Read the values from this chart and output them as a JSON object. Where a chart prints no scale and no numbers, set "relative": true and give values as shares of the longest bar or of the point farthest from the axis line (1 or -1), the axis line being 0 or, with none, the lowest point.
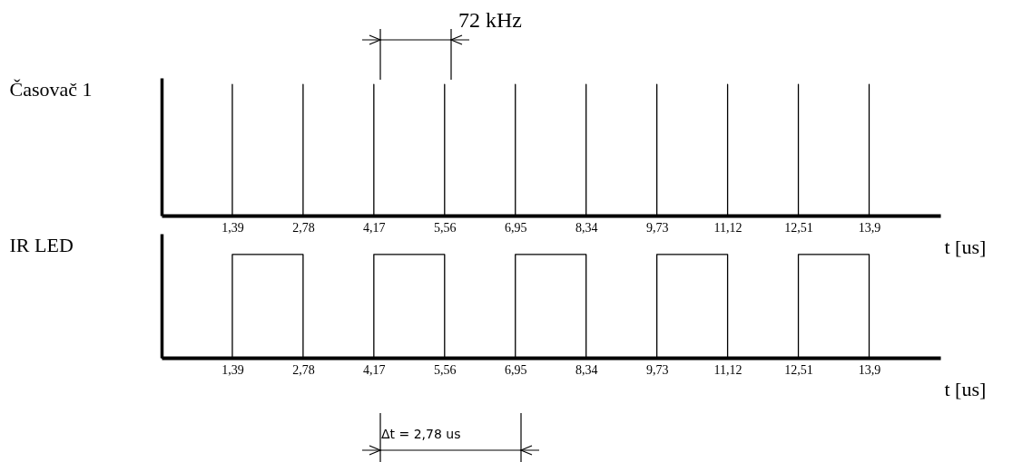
{
  "chart_data": [
    {
      "type": "line",
      "ylabel": "Časovač 1",
      "xlabel": "t [us]",
      "relative": true,
      "annotations": [
        "72 kHz"
      ],
      "xlim": [
        0,
        15.3
      ],
      "xticks": [
        {
          "value": 1.39,
          "label": "1,39"
        },
        {
          "value": 2.78,
          "label": "2,78"
        },
        {
          "value": 4.17,
          "label": "4,17"
        },
        {
          "value": 5.56,
          "label": "5,56"
        },
        {
          "value": 6.95,
          "label": "6,95"
        },
        {
          "value": 8.34,
          "label": "8,34"
        },
        {
          "value": 9.73,
          "label": "9,73"
        },
        {
          "value": 11.12,
          "label": "11,12"
        },
        {
          "value": 12.51,
          "label": "12,51"
        },
        {
          "value": 13.9,
          "label": "13,9"
        }
      ],
      "series": [
        {
          "color": "#000000",
          "x": [
            1.39,
            1.39,
            1.39,
            2.78,
            2.78,
            2.78,
            4.17,
            4.17,
            4.17,
            5.56,
            5.56,
            5.56,
            6.95,
            6.95,
            6.95,
            8.34,
            8.34,
            8.34,
            9.73,
            9.73,
            9.73,
            11.12,
            11.12,
            11.12,
            12.51,
            12.51,
            12.51,
            13.9,
            13.9,
            13.9
          ],
          "values": [
            0,
            1,
            0,
            0,
            1,
            0,
            0,
            1,
            0,
            0,
            1,
            0,
            0,
            1,
            0,
            0,
            1,
            0,
            0,
            1,
            0,
            0,
            1,
            0,
            0,
            1,
            0,
            0,
            1,
            0
          ]
        }
      ]
    },
    {
      "type": "step",
      "ylabel": "IR LED",
      "xlabel": "t [us]",
      "relative": true,
      "annotations": [
        "Δt = 2,78 us"
      ],
      "xlim": [
        0,
        15.3
      ],
      "xticks": [
        {
          "value": 1.39,
          "label": "1,39"
        },
        {
          "value": 2.78,
          "label": "2,78"
        },
        {
          "value": 4.17,
          "label": "4,17"
        },
        {
          "value": 5.56,
          "label": "5,56"
        },
        {
          "value": 6.95,
          "label": "6,95"
        },
        {
          "value": 8.34,
          "label": "8,34"
        },
        {
          "value": 9.73,
          "label": "9,73"
        },
        {
          "value": 11.12,
          "label": "11,12"
        },
        {
          "value": 12.51,
          "label": "12,51"
        },
        {
          "value": 13.9,
          "label": "13,9"
        }
      ],
      "series": [
        {
          "color": "#000000",
          "x": [
            0,
            1.39,
            2.78,
            4.17,
            5.56,
            6.95,
            8.34,
            9.73,
            11.12,
            12.51,
            13.9
          ],
          "values": [
            0,
            1,
            0,
            1,
            0,
            1,
            0,
            1,
            0,
            1,
            0
          ]
        }
      ]
    }
  ]
}
